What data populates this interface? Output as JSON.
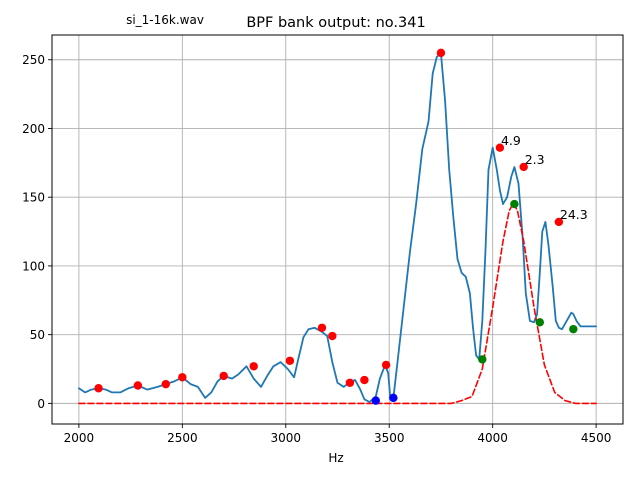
{
  "chart_data": {
    "type": "line",
    "title": "BPF bank output: no.341",
    "subtitle": "si_1-16k.wav",
    "xlabel": "Hz",
    "ylabel": "",
    "xlim": [
      1870,
      4630
    ],
    "ylim": [
      -15,
      268
    ],
    "xticks": [
      2000,
      2500,
      3000,
      3500,
      4000,
      4500
    ],
    "yticks": [
      0,
      50,
      100,
      150,
      200,
      250
    ],
    "grid": true,
    "colors": {
      "line": "#1f77b4",
      "dashed": "#ff0000",
      "peak": "#ff0000",
      "valley": "#0000ff",
      "filter": "#008000",
      "grid": "#b0b0b0"
    },
    "series": [
      {
        "style": "solid",
        "x": [
          2000,
          2030,
          2060,
          2095,
          2130,
          2160,
          2200,
          2240,
          2285,
          2330,
          2380,
          2420,
          2460,
          2500,
          2540,
          2575,
          2610,
          2640,
          2670,
          2700,
          2740,
          2770,
          2810,
          2845,
          2880,
          2910,
          2940,
          2975,
          3010,
          3040,
          3060,
          3085,
          3110,
          3140,
          3175,
          3200,
          3225,
          3250,
          3280,
          3305,
          3335,
          3360,
          3380,
          3405,
          3435,
          3455,
          3480,
          3495,
          3505,
          3520,
          3540,
          3570,
          3600,
          3630,
          3660,
          3690,
          3710,
          3730,
          3750,
          3770,
          3790,
          3810,
          3830,
          3850,
          3870,
          3890,
          3905,
          3920,
          3935,
          3950,
          3965,
          3980,
          4000,
          4020,
          4035,
          4050,
          4070,
          4090,
          4105,
          4125,
          4145,
          4160,
          4180,
          4200,
          4215,
          4228,
          4240,
          4255,
          4270,
          4290,
          4305,
          4320,
          4335,
          4350,
          4365,
          4380,
          4390,
          4405,
          4425,
          4445,
          4465,
          4485,
          4500
        ],
        "y": [
          11,
          8,
          10,
          11,
          10,
          8,
          8,
          11,
          13,
          10,
          12,
          14,
          16,
          19,
          14,
          12,
          4,
          8,
          16,
          20,
          18,
          21,
          27,
          18,
          12,
          20,
          27,
          30,
          25,
          19,
          32,
          48,
          54,
          55,
          52,
          49,
          30,
          15,
          12,
          15,
          17,
          10,
          3,
          1,
          5,
          18,
          28,
          22,
          4,
          4,
          30,
          70,
          110,
          145,
          185,
          205,
          240,
          252,
          255,
          220,
          170,
          135,
          105,
          95,
          92,
          80,
          55,
          35,
          32,
          60,
          110,
          170,
          186,
          170,
          155,
          145,
          150,
          165,
          172,
          160,
          120,
          80,
          60,
          59,
          65,
          95,
          125,
          132,
          115,
          85,
          60,
          55,
          54,
          58,
          62,
          66,
          65,
          60,
          56,
          56,
          56,
          56,
          56
        ]
      },
      {
        "style": "dashed",
        "x": [
          2000,
          3800,
          3850,
          3900,
          3950,
          4000,
          4050,
          4080,
          4100,
          4120,
          4150,
          4200,
          4250,
          4300,
          4350,
          4400,
          4450,
          4500
        ],
        "y": [
          0,
          0,
          2,
          5,
          25,
          70,
          118,
          140,
          146,
          140,
          118,
          70,
          28,
          8,
          2,
          0,
          0,
          0
        ]
      }
    ],
    "markers": [
      {
        "kind": "peak",
        "points": [
          [
            2095,
            11
          ],
          [
            2285,
            13
          ],
          [
            2420,
            14
          ],
          [
            2500,
            19
          ],
          [
            2700,
            20
          ],
          [
            2845,
            27
          ],
          [
            3020,
            31
          ],
          [
            3175,
            55
          ],
          [
            3225,
            49
          ],
          [
            3310,
            15
          ],
          [
            3380,
            17
          ],
          [
            3485,
            28
          ],
          [
            3750,
            255
          ],
          [
            4035,
            186
          ],
          [
            4150,
            172
          ],
          [
            4320,
            132
          ]
        ]
      },
      {
        "kind": "valley",
        "points": [
          [
            3435,
            2
          ],
          [
            3520,
            4
          ]
        ]
      },
      {
        "kind": "filter",
        "points": [
          [
            3950,
            32
          ],
          [
            4105,
            145
          ],
          [
            4228,
            59
          ],
          [
            4390,
            54
          ]
        ]
      }
    ],
    "annotations": [
      {
        "text": "4.9",
        "x": 4040,
        "y": 188
      },
      {
        "text": "2.3",
        "x": 4155,
        "y": 174
      },
      {
        "text": "24.3",
        "x": 4325,
        "y": 134
      }
    ]
  }
}
